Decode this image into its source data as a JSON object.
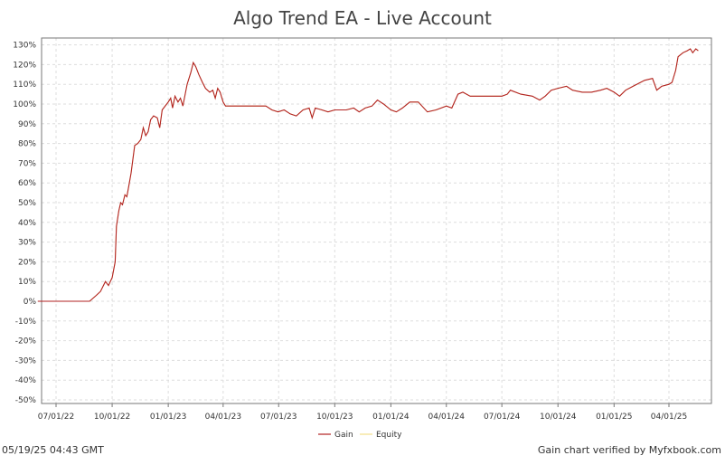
{
  "chart_data": {
    "type": "line",
    "title": "Algo Trend EA - Live Account",
    "xlabel": "",
    "ylabel": "",
    "x_ticks": [
      "07/01/22",
      "10/01/22",
      "01/01/23",
      "04/01/23",
      "07/01/23",
      "10/01/23",
      "01/01/24",
      "04/01/24",
      "07/01/24",
      "10/01/24",
      "01/01/25",
      "04/01/25"
    ],
    "y_ticks": [
      "130%",
      "120%",
      "110%",
      "100%",
      "90%",
      "80%",
      "70%",
      "60%",
      "50%",
      "40%",
      "30%",
      "20%",
      "10%",
      "0%",
      "-10%",
      "-20%",
      "-30%",
      "-40%",
      "-50%"
    ],
    "ylim": [
      -50,
      132
    ],
    "xlim": [
      "2022-06-01",
      "2025-06-15"
    ],
    "grid": true,
    "legend_position": "bottom-center",
    "series": [
      {
        "name": "Gain",
        "color": "#b22222",
        "points": [
          [
            "2022-06-01",
            0
          ],
          [
            "2022-07-15",
            0
          ],
          [
            "2022-08-15",
            0
          ],
          [
            "2022-08-25",
            0
          ],
          [
            "2022-09-05",
            3
          ],
          [
            "2022-09-12",
            5
          ],
          [
            "2022-09-20",
            10
          ],
          [
            "2022-09-25",
            8
          ],
          [
            "2022-10-01",
            12
          ],
          [
            "2022-10-06",
            20
          ],
          [
            "2022-10-08",
            38
          ],
          [
            "2022-10-12",
            46
          ],
          [
            "2022-10-15",
            50
          ],
          [
            "2022-10-18",
            49
          ],
          [
            "2022-10-22",
            54
          ],
          [
            "2022-10-25",
            53
          ],
          [
            "2022-10-28",
            58
          ],
          [
            "2022-11-01",
            65
          ],
          [
            "2022-11-04",
            72
          ],
          [
            "2022-11-07",
            79
          ],
          [
            "2022-11-12",
            80
          ],
          [
            "2022-11-17",
            82
          ],
          [
            "2022-11-21",
            88
          ],
          [
            "2022-11-25",
            84
          ],
          [
            "2022-11-29",
            86
          ],
          [
            "2022-12-03",
            92
          ],
          [
            "2022-12-08",
            94
          ],
          [
            "2022-12-14",
            93
          ],
          [
            "2022-12-18",
            88
          ],
          [
            "2022-12-22",
            97
          ],
          [
            "2023-01-01",
            101
          ],
          [
            "2023-01-05",
            103
          ],
          [
            "2023-01-08",
            98
          ],
          [
            "2023-01-12",
            104
          ],
          [
            "2023-01-17",
            101
          ],
          [
            "2023-01-21",
            103
          ],
          [
            "2023-01-25",
            99
          ],
          [
            "2023-02-01",
            110
          ],
          [
            "2023-02-07",
            116
          ],
          [
            "2023-02-11",
            121
          ],
          [
            "2023-02-15",
            119
          ],
          [
            "2023-02-20",
            115
          ],
          [
            "2023-02-26",
            111
          ],
          [
            "2023-03-03",
            108
          ],
          [
            "2023-03-10",
            106
          ],
          [
            "2023-03-15",
            107
          ],
          [
            "2023-03-19",
            103
          ],
          [
            "2023-03-23",
            108
          ],
          [
            "2023-03-27",
            106
          ],
          [
            "2023-04-01",
            101
          ],
          [
            "2023-04-05",
            99
          ],
          [
            "2023-06-10",
            99
          ],
          [
            "2023-06-20",
            97
          ],
          [
            "2023-06-30",
            96
          ],
          [
            "2023-07-10",
            97
          ],
          [
            "2023-07-20",
            95
          ],
          [
            "2023-07-30",
            94
          ],
          [
            "2023-08-10",
            97
          ],
          [
            "2023-08-20",
            98
          ],
          [
            "2023-08-25",
            93
          ],
          [
            "2023-08-30",
            98
          ],
          [
            "2023-09-10",
            97
          ],
          [
            "2023-09-20",
            96
          ],
          [
            "2023-10-01",
            97
          ],
          [
            "2023-10-20",
            97
          ],
          [
            "2023-11-01",
            98
          ],
          [
            "2023-11-10",
            96
          ],
          [
            "2023-11-20",
            98
          ],
          [
            "2023-12-01",
            99
          ],
          [
            "2023-12-10",
            102
          ],
          [
            "2023-12-20",
            100
          ],
          [
            "2024-01-01",
            97
          ],
          [
            "2024-01-10",
            96
          ],
          [
            "2024-01-20",
            98
          ],
          [
            "2024-02-01",
            101
          ],
          [
            "2024-02-15",
            101
          ],
          [
            "2024-03-01",
            96
          ],
          [
            "2024-03-15",
            97
          ],
          [
            "2024-04-01",
            99
          ],
          [
            "2024-04-10",
            98
          ],
          [
            "2024-04-20",
            105
          ],
          [
            "2024-04-28",
            106
          ],
          [
            "2024-05-10",
            104
          ],
          [
            "2024-06-01",
            104
          ],
          [
            "2024-07-01",
            104
          ],
          [
            "2024-07-10",
            105
          ],
          [
            "2024-07-15",
            107
          ],
          [
            "2024-08-01",
            105
          ],
          [
            "2024-08-20",
            104
          ],
          [
            "2024-09-01",
            102
          ],
          [
            "2024-09-10",
            104
          ],
          [
            "2024-09-20",
            107
          ],
          [
            "2024-10-01",
            108
          ],
          [
            "2024-10-15",
            109
          ],
          [
            "2024-10-25",
            107
          ],
          [
            "2024-11-10",
            106
          ],
          [
            "2024-11-25",
            106
          ],
          [
            "2024-12-10",
            107
          ],
          [
            "2024-12-20",
            108
          ],
          [
            "2025-01-01",
            106
          ],
          [
            "2025-01-10",
            104
          ],
          [
            "2025-01-20",
            107
          ],
          [
            "2025-02-01",
            109
          ],
          [
            "2025-02-20",
            112
          ],
          [
            "2025-03-05",
            113
          ],
          [
            "2025-03-12",
            107
          ],
          [
            "2025-03-20",
            109
          ],
          [
            "2025-04-01",
            110
          ],
          [
            "2025-04-06",
            111
          ],
          [
            "2025-04-12",
            117
          ],
          [
            "2025-04-16",
            124
          ],
          [
            "2025-04-24",
            126
          ],
          [
            "2025-05-01",
            127
          ],
          [
            "2025-05-06",
            128
          ],
          [
            "2025-05-10",
            126
          ],
          [
            "2025-05-15",
            128
          ],
          [
            "2025-05-19",
            127
          ]
        ]
      },
      {
        "name": "Equity",
        "color": "#f2e08a",
        "points": [
          [
            "2022-06-01",
            0
          ],
          [
            "2022-07-15",
            0
          ],
          [
            "2022-08-15",
            0
          ],
          [
            "2022-08-25",
            0
          ],
          [
            "2022-09-05",
            3
          ],
          [
            "2022-09-12",
            5
          ],
          [
            "2022-09-20",
            10
          ],
          [
            "2022-09-25",
            8
          ],
          [
            "2022-10-01",
            12
          ],
          [
            "2022-10-06",
            20
          ],
          [
            "2022-10-08",
            38
          ],
          [
            "2022-10-12",
            46
          ],
          [
            "2022-10-15",
            50
          ],
          [
            "2022-10-18",
            49
          ],
          [
            "2022-10-22",
            54
          ],
          [
            "2022-10-25",
            53
          ],
          [
            "2022-10-28",
            58
          ],
          [
            "2022-11-01",
            65
          ],
          [
            "2022-11-04",
            72
          ],
          [
            "2022-11-07",
            79
          ],
          [
            "2022-11-12",
            80
          ],
          [
            "2022-11-17",
            82
          ],
          [
            "2022-11-21",
            88
          ],
          [
            "2022-11-25",
            84
          ],
          [
            "2022-11-29",
            86
          ],
          [
            "2022-12-03",
            92
          ],
          [
            "2022-12-08",
            94
          ],
          [
            "2022-12-14",
            93
          ],
          [
            "2022-12-18",
            88
          ],
          [
            "2022-12-22",
            97
          ],
          [
            "2023-01-01",
            101
          ],
          [
            "2023-01-05",
            103
          ],
          [
            "2023-01-08",
            98
          ],
          [
            "2023-01-12",
            104
          ],
          [
            "2023-01-17",
            101
          ],
          [
            "2023-01-21",
            103
          ],
          [
            "2023-01-25",
            99
          ],
          [
            "2023-02-01",
            110
          ],
          [
            "2023-02-07",
            116
          ],
          [
            "2023-02-11",
            121
          ],
          [
            "2023-02-15",
            119
          ],
          [
            "2023-02-20",
            115
          ],
          [
            "2023-02-26",
            111
          ],
          [
            "2023-03-03",
            108
          ],
          [
            "2023-03-10",
            106
          ],
          [
            "2023-03-15",
            107
          ],
          [
            "2023-03-19",
            103
          ],
          [
            "2023-03-23",
            108
          ],
          [
            "2023-03-27",
            106
          ],
          [
            "2023-04-01",
            101
          ],
          [
            "2023-04-05",
            99
          ],
          [
            "2023-06-10",
            99
          ],
          [
            "2023-06-20",
            97
          ],
          [
            "2023-06-30",
            96
          ],
          [
            "2023-07-10",
            97
          ],
          [
            "2023-07-20",
            95
          ],
          [
            "2023-07-30",
            94
          ],
          [
            "2023-08-10",
            97
          ],
          [
            "2023-08-20",
            98
          ],
          [
            "2023-08-25",
            93
          ],
          [
            "2023-08-30",
            98
          ],
          [
            "2023-09-10",
            97
          ],
          [
            "2023-09-20",
            96
          ],
          [
            "2023-10-01",
            97
          ],
          [
            "2023-10-20",
            97
          ],
          [
            "2023-11-01",
            98
          ],
          [
            "2023-11-10",
            96
          ],
          [
            "2023-11-20",
            98
          ],
          [
            "2023-12-01",
            99
          ],
          [
            "2023-12-10",
            102
          ],
          [
            "2023-12-20",
            100
          ],
          [
            "2024-01-01",
            97
          ],
          [
            "2024-01-10",
            96
          ],
          [
            "2024-01-20",
            98
          ],
          [
            "2024-02-01",
            101
          ],
          [
            "2024-02-15",
            101
          ],
          [
            "2024-03-01",
            96
          ],
          [
            "2024-03-15",
            97
          ],
          [
            "2024-04-01",
            99
          ],
          [
            "2024-04-10",
            98
          ],
          [
            "2024-04-20",
            105
          ],
          [
            "2024-04-28",
            106
          ],
          [
            "2024-05-10",
            104
          ],
          [
            "2024-06-01",
            104
          ],
          [
            "2024-07-01",
            104
          ],
          [
            "2024-07-10",
            105
          ],
          [
            "2024-07-15",
            107
          ],
          [
            "2024-08-01",
            105
          ],
          [
            "2024-08-20",
            104
          ],
          [
            "2024-09-01",
            102
          ],
          [
            "2024-09-10",
            104
          ],
          [
            "2024-09-20",
            107
          ],
          [
            "2024-10-01",
            108
          ],
          [
            "2024-10-15",
            109
          ],
          [
            "2024-10-25",
            107
          ],
          [
            "2024-11-10",
            106
          ],
          [
            "2024-11-25",
            106
          ],
          [
            "2024-12-10",
            107
          ],
          [
            "2024-12-20",
            108
          ],
          [
            "2025-01-01",
            106
          ],
          [
            "2025-01-10",
            104
          ],
          [
            "2025-01-20",
            107
          ],
          [
            "2025-02-01",
            109
          ],
          [
            "2025-02-20",
            112
          ],
          [
            "2025-03-05",
            113
          ],
          [
            "2025-03-12",
            107
          ],
          [
            "2025-03-20",
            109
          ],
          [
            "2025-04-01",
            110
          ],
          [
            "2025-04-06",
            111
          ],
          [
            "2025-04-12",
            117
          ],
          [
            "2025-04-16",
            124
          ],
          [
            "2025-04-24",
            126
          ],
          [
            "2025-05-01",
            127
          ],
          [
            "2025-05-06",
            128
          ],
          [
            "2025-05-10",
            126
          ],
          [
            "2025-05-15",
            128
          ],
          [
            "2025-05-19",
            127
          ]
        ]
      }
    ]
  },
  "footer": {
    "timestamp": "05/19/25 04:43 GMT",
    "verified": "Gain chart verified by Myfxbook.com"
  }
}
